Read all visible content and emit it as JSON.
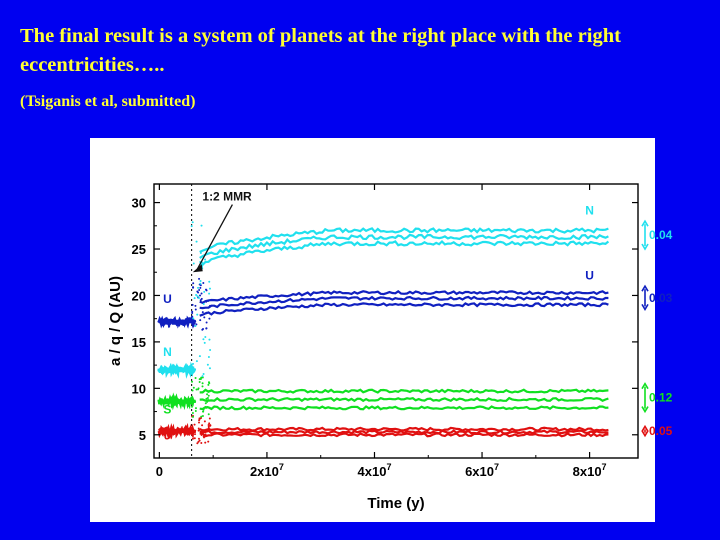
{
  "slide": {
    "title": "The final result is a system of planets at the right place with the right eccentricities…..",
    "citation": "(Tsiganis et al, submitted)"
  },
  "chart_data": {
    "type": "line",
    "title": "",
    "xlabel": "Time (y)",
    "ylabel": "a / q / Q  (AU)",
    "xlim": [
      -0.1,
      8.9
    ],
    "ylim": [
      2.5,
      32
    ],
    "x_unit_note": "x in units of 10^7 years",
    "xticks": [
      {
        "value": 0,
        "label": "0",
        "exp": ""
      },
      {
        "value": 2,
        "label": "2x10",
        "exp": "7"
      },
      {
        "value": 4,
        "label": "4x10",
        "exp": "7"
      },
      {
        "value": 6,
        "label": "6x10",
        "exp": "7"
      },
      {
        "value": 8,
        "label": "8x10",
        "exp": "7"
      }
    ],
    "yticks": [
      5,
      10,
      15,
      20,
      25,
      30
    ],
    "mmr_time": 0.6,
    "annotation": {
      "label": "1:2 MMR",
      "x": 0.8,
      "y": 30.0,
      "arrow_to_x": 0.62,
      "arrow_to_y": 22.5
    },
    "colors": {
      "J": "#e01010",
      "S": "#10e020",
      "U": "#1020c0",
      "N": "#20e0ee"
    },
    "planets": [
      {
        "name": "J",
        "color": "#e01010",
        "initial_a": 5.4,
        "lines": [
          {
            "role": "Q",
            "y": 5.6
          },
          {
            "role": "a",
            "y": 5.3
          },
          {
            "role": "q",
            "y": 5.0
          }
        ],
        "labels": [
          {
            "text": "J",
            "x": 0.15,
            "y": 4.5
          }
        ],
        "ecc_label": "0.05",
        "ecc_range": [
          4.9,
          5.9
        ]
      },
      {
        "name": "S",
        "color": "#10e020",
        "initial_a": 8.6,
        "lines": [
          {
            "role": "Q",
            "y": 9.7
          },
          {
            "role": "a",
            "y": 8.8
          },
          {
            "role": "q",
            "y": 7.9
          }
        ],
        "labels": [
          {
            "text": "S",
            "x": 0.15,
            "y": 7.3
          }
        ],
        "ecc_label": "0.12",
        "ecc_range": [
          7.5,
          10.5
        ]
      },
      {
        "name": "U",
        "color": "#1020c0",
        "initial_a": 17.2,
        "lines": [
          {
            "role": "Q",
            "y": 20.3
          },
          {
            "role": "a",
            "y": 19.7
          },
          {
            "role": "q",
            "y": 19.0
          }
        ],
        "labels": [
          {
            "text": "U",
            "x": 0.15,
            "y": 19.2
          },
          {
            "text": "U",
            "x": 8.0,
            "y": 21.7
          }
        ],
        "ecc_label": "0.03",
        "ecc_range": [
          18.5,
          21.0
        ]
      },
      {
        "name": "N",
        "color": "#20e0ee",
        "initial_a": 12.0,
        "lines": [
          {
            "role": "Q",
            "y": 27.0
          },
          {
            "role": "a",
            "y": 26.3
          },
          {
            "role": "q",
            "y": 25.6
          }
        ],
        "labels": [
          {
            "text": "N",
            "x": 0.15,
            "y": 13.5
          },
          {
            "text": "N",
            "x": 8.0,
            "y": 28.7
          }
        ],
        "ecc_label": "0.04",
        "ecc_range": [
          25.0,
          28.0
        ]
      }
    ]
  }
}
